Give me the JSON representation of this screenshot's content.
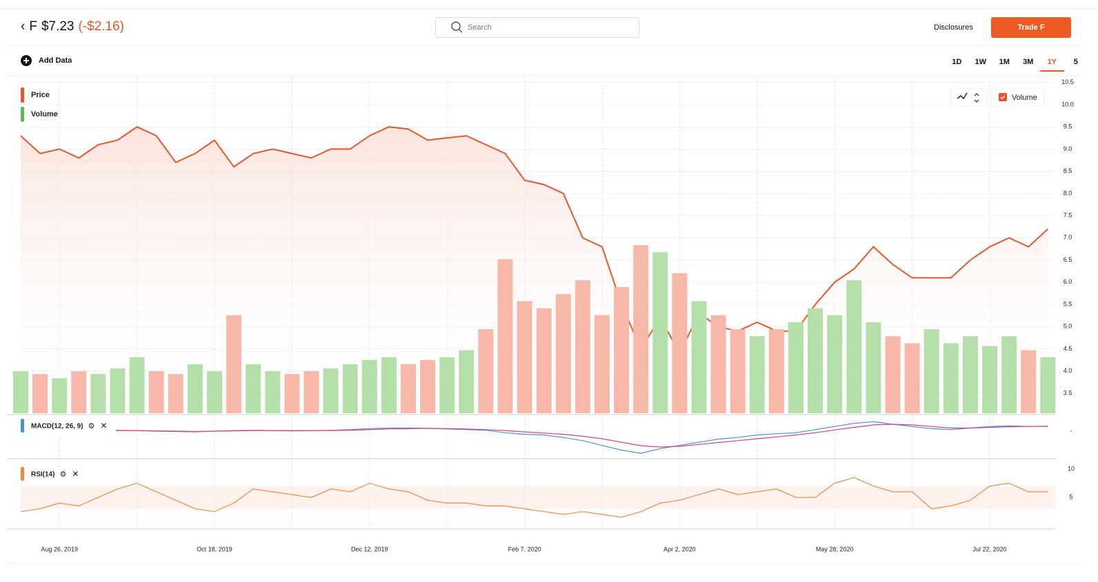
{
  "header": {
    "ticker": "F",
    "price": "$7.23",
    "change": "(-$2.16)",
    "search_placeholder": "Search",
    "disclosures": "Disclosures",
    "trade_button": "Trade F",
    "add_data": "Add Data",
    "ranges": [
      "1D",
      "1W",
      "1M",
      "3M",
      "1Y",
      "5"
    ],
    "active_range": 4
  },
  "chart_data": [
    {
      "type": "line",
      "categories": [
        null,
        null,
        "Aug 26, 2019",
        null,
        null,
        null,
        null,
        null,
        null,
        null,
        "Oct 18, 2019",
        null,
        null,
        null,
        null,
        null,
        null,
        null,
        "Dec 12, 2019",
        null,
        null,
        null,
        null,
        null,
        null,
        null,
        "Feb 7, 2020",
        null,
        null,
        null,
        null,
        null,
        null,
        null,
        "Apr 2, 2020",
        null,
        null,
        null,
        null,
        null,
        null,
        null,
        "May 28, 2020",
        null,
        null,
        null,
        null,
        null,
        null,
        null,
        "Jul 22, 2020",
        null,
        null,
        null
      ],
      "series": [
        {
          "name": "Price",
          "color": "#e8552a",
          "values": [
            9.3,
            8.9,
            9.0,
            8.8,
            9.1,
            9.2,
            9.5,
            9.3,
            8.7,
            8.9,
            9.2,
            8.6,
            8.9,
            9.0,
            8.9,
            8.8,
            9.0,
            9.0,
            9.3,
            9.5,
            9.45,
            9.2,
            9.25,
            9.3,
            9.1,
            8.9,
            8.3,
            8.2,
            8.0,
            7.0,
            6.8,
            5.5,
            4.5,
            5.2,
            4.4,
            5.3,
            5.0,
            4.9,
            5.1,
            4.9,
            4.9,
            5.5,
            6.0,
            6.3,
            6.8,
            6.4,
            6.1,
            6.1,
            6.1,
            6.5,
            6.8,
            7.0,
            6.8,
            7.2
          ]
        }
      ],
      "ylim": [
        3.05,
        10.62
      ],
      "yticks": [
        3.5,
        {
          "value": 4,
          "label": "4.0"
        },
        4.5,
        {
          "value": 5,
          "label": "5.0"
        },
        5.5,
        {
          "value": 6,
          "label": "6.0"
        },
        6.5,
        {
          "value": 7,
          "label": "7.0"
        },
        7.5,
        {
          "value": 8,
          "label": "8.0"
        },
        8.5,
        {
          "value": 9,
          "label": "9.0"
        },
        9.5,
        {
          "value": 10,
          "label": "10.0"
        },
        10.5
      ],
      "grid": true
    },
    {
      "type": "bar",
      "series": [
        {
          "name": "Volume",
          "color": "#5cb85c",
          "values": [
            30,
            28,
            25,
            30,
            28,
            32,
            40,
            30,
            28,
            35,
            30,
            70,
            35,
            30,
            28,
            30,
            32,
            35,
            38,
            40,
            35,
            38,
            40,
            45,
            60,
            110,
            80,
            75,
            85,
            95,
            70,
            90,
            120,
            115,
            100,
            80,
            70,
            60,
            55,
            60,
            65,
            75,
            70,
            95,
            65,
            55,
            50,
            60,
            50,
            55,
            48,
            55,
            45,
            40
          ]
        }
      ],
      "up_color": "#b5dfa9",
      "down_color": "#f7b8aa",
      "ylim": [
        0,
        240
      ]
    },
    {
      "type": "line",
      "title": "MACD(12, 26, 9)",
      "series": [
        {
          "color": "#4a90d9",
          "values": [
            0,
            0,
            0,
            0.02,
            0.03,
            0.03,
            0.02,
            0,
            -0.01,
            -0.02,
            0,
            0.02,
            0.03,
            0.02,
            0.01,
            0.02,
            0.03,
            0.05,
            0.08,
            0.1,
            0.1,
            0.09,
            0.07,
            0.05,
            0.03,
            -0.05,
            -0.1,
            -0.12,
            -0.2,
            -0.3,
            -0.45,
            -0.6,
            -0.7,
            -0.55,
            -0.45,
            -0.35,
            -0.25,
            -0.2,
            -0.12,
            -0.08,
            -0.05,
            0.05,
            0.15,
            0.25,
            0.3,
            0.22,
            0.15,
            0.08,
            0.05,
            0.1,
            0.15,
            0.17,
            0.15,
            0.16
          ]
        },
        {
          "color": "#d9407a",
          "values": [
            0,
            0,
            0,
            0.01,
            0.02,
            0.02,
            0.02,
            0.01,
            0,
            -0.01,
            0,
            0.01,
            0.02,
            0.02,
            0.02,
            0.02,
            0.02,
            0.03,
            0.05,
            0.07,
            0.08,
            0.09,
            0.08,
            0.07,
            0.05,
            0.02,
            -0.02,
            -0.06,
            -0.1,
            -0.16,
            -0.24,
            -0.35,
            -0.46,
            -0.5,
            -0.48,
            -0.42,
            -0.36,
            -0.3,
            -0.24,
            -0.18,
            -0.12,
            -0.05,
            0.04,
            0.12,
            0.2,
            0.22,
            0.2,
            0.15,
            0.1,
            0.1,
            0.12,
            0.14,
            0.15,
            0.15
          ]
        }
      ],
      "ylim": [
        -0.85,
        0.35
      ],
      "yticks": [
        {
          "value": 0,
          "label": "-"
        }
      ],
      "color": "#4a90d9"
    },
    {
      "type": "line",
      "title": "RSI(14)",
      "series": [
        {
          "color": "#f08a3c",
          "values": [
            2.5,
            3,
            4,
            3.5,
            5,
            6.5,
            7.5,
            6,
            4.5,
            3,
            2.5,
            4,
            6.5,
            6,
            5.5,
            5,
            6.5,
            6,
            7.5,
            6.5,
            6,
            4.5,
            4,
            4,
            3.5,
            3.5,
            3,
            2.5,
            2,
            2.5,
            2,
            1.5,
            2.5,
            4,
            4.5,
            5.5,
            6.5,
            5.5,
            6,
            6.5,
            5,
            5,
            7.5,
            8.5,
            7,
            6,
            6,
            3,
            3.5,
            4.5,
            7,
            7.5,
            6,
            6
          ]
        }
      ],
      "ylim": [
        -0.2,
        11.1
      ],
      "yticks": [
        10,
        5
      ],
      "color": "#f08a3c"
    }
  ]
}
